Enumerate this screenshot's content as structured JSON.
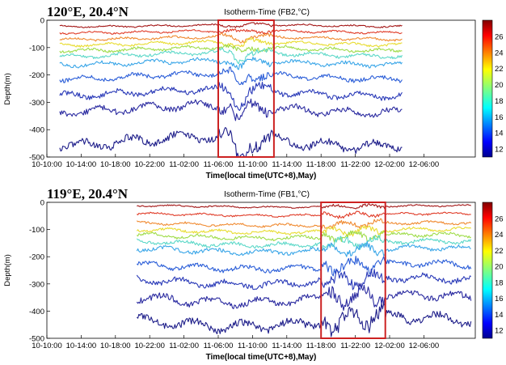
{
  "chart_data": [
    {
      "type": "line",
      "location_label": "120°E, 20.4°N",
      "title": "Isotherm-Time (FB2,°C)",
      "xlabel": "Time(local time(UTC+8),May)",
      "ylabel": "Depth(m)",
      "x_ticks": [
        "10-10:00",
        "10-14:00",
        "10-18:00",
        "10-22:00",
        "11-02:00",
        "11-06:00",
        "11-10:00",
        "11-14:00",
        "11-18:00",
        "11-22:00",
        "12-02:00",
        "12-06:00"
      ],
      "y_ticks": [
        "0",
        "-100",
        "-200",
        "-300",
        "-400",
        "-500"
      ],
      "ylim": [
        -500,
        0
      ],
      "xlim_hours_from_10_10:00": [
        0,
        50
      ],
      "data_start_hour": 1.5,
      "data_end_hour": 41.5,
      "highlight_box": {
        "x_from": "11-06:00",
        "x_to": "11-12:30",
        "y_from": 0,
        "y_to": -500,
        "color": "#cc2222"
      },
      "colorbar": {
        "ticks": [
          "26",
          "24",
          "22",
          "20",
          "18",
          "16",
          "14",
          "12"
        ],
        "range": [
          11,
          28
        ]
      },
      "series": [
        {
          "temperature": 26,
          "color": "#a31616",
          "mean_depth": -20,
          "mode": "top"
        },
        {
          "temperature": 24.5,
          "color": "#e03c28",
          "mean_depth": -42,
          "mode": "top"
        },
        {
          "temperature": 23,
          "color": "#f08a30",
          "mean_depth": -65,
          "mode": "top"
        },
        {
          "temperature": 22,
          "color": "#e8dc30",
          "mean_depth": -85
        },
        {
          "temperature": 21,
          "color": "#9fdc4a",
          "mean_depth": -105
        },
        {
          "temperature": 20,
          "color": "#5cd8c8",
          "mean_depth": -125
        },
        {
          "temperature": 19,
          "color": "#3aa6e8",
          "mean_depth": -155
        },
        {
          "temperature": 17,
          "color": "#2b5ed8",
          "mean_depth": -205
        },
        {
          "temperature": 15.5,
          "color": "#2a3ab8",
          "mean_depth": -265
        },
        {
          "temperature": 14,
          "color": "#2a2aa0",
          "mean_depth": -325
        },
        {
          "temperature": 12,
          "color": "#1e1e8a",
          "mean_depth": -445
        }
      ]
    },
    {
      "type": "line",
      "location_label": "119°E, 20.4°N",
      "title": "Isotherm-Time (FB1,°C)",
      "xlabel": "Time(local time(UTC+8),May)",
      "ylabel": "Depth(m)",
      "x_ticks": [
        "10-10:00",
        "10-14:00",
        "10-18:00",
        "10-22:00",
        "11-02:00",
        "11-06:00",
        "11-10:00",
        "11-14:00",
        "11-18:00",
        "11-22:00",
        "12-02:00",
        "12-06:00"
      ],
      "y_ticks": [
        "0",
        "-100",
        "-200",
        "-300",
        "-400",
        "-500"
      ],
      "ylim": [
        -500,
        0
      ],
      "xlim_hours_from_10_10:00": [
        0,
        50
      ],
      "data_start_hour": 10.5,
      "data_end_hour": 49.5,
      "highlight_box": {
        "x_from": "11-18:00",
        "x_to": "12-01:30",
        "y_from": 0,
        "y_to": -500,
        "color": "#cc2222"
      },
      "colorbar": {
        "ticks": [
          "26",
          "24",
          "22",
          "20",
          "18",
          "16",
          "14",
          "12"
        ],
        "range": [
          11,
          28
        ]
      },
      "series": [
        {
          "temperature": 26,
          "color": "#a31616",
          "mean_depth": -15,
          "mode": "top"
        },
        {
          "temperature": 24.5,
          "color": "#e03c28",
          "mean_depth": -45,
          "mode": "top"
        },
        {
          "temperature": 23,
          "color": "#f08a30",
          "mean_depth": -80
        },
        {
          "temperature": 22,
          "color": "#e8dc30",
          "mean_depth": -105
        },
        {
          "temperature": 21,
          "color": "#9fdc4a",
          "mean_depth": -125
        },
        {
          "temperature": 20,
          "color": "#5cd8c8",
          "mean_depth": -150
        },
        {
          "temperature": 19,
          "color": "#3aa6e8",
          "mean_depth": -175
        },
        {
          "temperature": 17,
          "color": "#2b5ed8",
          "mean_depth": -235
        },
        {
          "temperature": 15.5,
          "color": "#2a3ab8",
          "mean_depth": -290
        },
        {
          "temperature": 14,
          "color": "#2a2aa0",
          "mean_depth": -355
        },
        {
          "temperature": 12,
          "color": "#1e1e8a",
          "mean_depth": -440
        }
      ]
    }
  ]
}
